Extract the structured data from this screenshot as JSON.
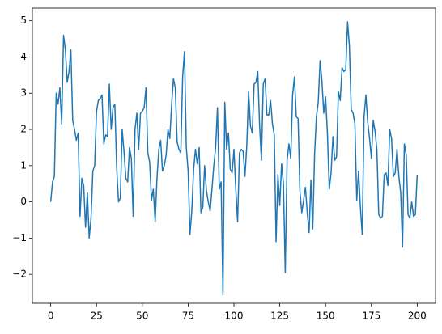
{
  "chart_data": {
    "type": "line",
    "x": [
      0,
      1,
      2,
      3,
      4,
      5,
      6,
      7,
      8,
      9,
      10,
      11,
      12,
      13,
      14,
      15,
      16,
      17,
      18,
      19,
      20,
      21,
      22,
      23,
      24,
      25,
      26,
      27,
      28,
      29,
      30,
      31,
      32,
      33,
      34,
      35,
      36,
      37,
      38,
      39,
      40,
      41,
      42,
      43,
      44,
      45,
      46,
      47,
      48,
      49,
      50,
      51,
      52,
      53,
      54,
      55,
      56,
      57,
      58,
      59,
      60,
      61,
      62,
      63,
      64,
      65,
      66,
      67,
      68,
      69,
      70,
      71,
      72,
      73,
      74,
      75,
      76,
      77,
      78,
      79,
      80,
      81,
      82,
      83,
      84,
      85,
      86,
      87,
      88,
      89,
      90,
      91,
      92,
      93,
      94,
      95,
      96,
      97,
      98,
      99,
      100,
      101,
      102,
      103,
      104,
      105,
      106,
      107,
      108,
      109,
      110,
      111,
      112,
      113,
      114,
      115,
      116,
      117,
      118,
      119,
      120,
      121,
      122,
      123,
      124,
      125,
      126,
      127,
      128,
      129,
      130,
      131,
      132,
      133,
      134,
      135,
      136,
      137,
      138,
      139,
      140,
      141,
      142,
      143,
      144,
      145,
      146,
      147,
      148,
      149,
      150,
      151,
      152,
      153,
      154,
      155,
      156,
      157,
      158,
      159,
      160,
      161,
      162,
      163,
      164,
      165,
      166,
      167,
      168,
      169,
      170,
      171,
      172,
      173,
      174,
      175,
      176,
      177,
      178,
      179,
      180,
      181,
      182,
      183,
      184,
      185,
      186,
      187,
      188,
      189,
      190,
      191,
      192,
      193,
      194,
      195,
      196,
      197,
      198,
      199,
      200
    ],
    "series": [
      {
        "color": "#1f77b4",
        "values": [
          0,
          0.55,
          0.7,
          3.0,
          2.7,
          3.15,
          2.15,
          4.6,
          4.2,
          3.3,
          3.6,
          4.2,
          2.25,
          2.0,
          1.7,
          1.9,
          -0.4,
          0.65,
          0.45,
          -0.7,
          0.25,
          -1.0,
          -0.45,
          0.85,
          1.0,
          2.5,
          2.8,
          2.85,
          2.95,
          1.6,
          1.85,
          1.8,
          3.25,
          2.0,
          2.6,
          2.7,
          0.95,
          0.0,
          0.1,
          2.0,
          1.4,
          0.65,
          0.55,
          1.5,
          1.2,
          -0.4,
          2.0,
          2.45,
          1.45,
          2.45,
          2.5,
          2.6,
          3.15,
          1.35,
          1.1,
          0.05,
          0.35,
          -0.55,
          0.65,
          1.45,
          1.7,
          0.85,
          1.0,
          1.3,
          2.0,
          1.75,
          2.7,
          3.4,
          3.15,
          1.65,
          1.45,
          1.35,
          3.45,
          4.15,
          1.5,
          0.85,
          -0.9,
          -0.25,
          0.9,
          1.45,
          1.05,
          1.5,
          -0.3,
          -0.15,
          1.0,
          0.3,
          0.0,
          -0.25,
          0.35,
          1.0,
          1.5,
          2.6,
          0.35,
          0.55,
          -2.57,
          2.75,
          1.45,
          1.9,
          0.9,
          0.8,
          1.45,
          0.35,
          -0.55,
          1.35,
          1.45,
          1.4,
          0.7,
          1.55,
          3.05,
          2.1,
          1.9,
          3.25,
          3.3,
          3.6,
          2.1,
          1.15,
          3.25,
          3.4,
          2.4,
          2.4,
          2.8,
          2.15,
          1.85,
          -1.1,
          0.75,
          -0.1,
          1.05,
          0.5,
          -1.95,
          1.15,
          1.6,
          1.2,
          2.95,
          3.45,
          2.35,
          2.3,
          0.3,
          -0.3,
          0.05,
          0.4,
          -0.3,
          -0.85,
          0.6,
          -0.75,
          1.3,
          2.35,
          2.75,
          3.9,
          3.35,
          2.45,
          2.9,
          1.9,
          0.35,
          0.8,
          1.8,
          1.15,
          1.25,
          3.05,
          2.8,
          3.7,
          3.6,
          3.65,
          4.97,
          4.3,
          2.55,
          2.45,
          2.15,
          0.05,
          0.85,
          -0.15,
          -0.9,
          2.35,
          2.95,
          2.2,
          1.75,
          1.2,
          2.25,
          1.95,
          1.45,
          -0.35,
          -0.45,
          -0.4,
          0.75,
          0.8,
          0.45,
          2.0,
          1.75,
          0.7,
          0.8,
          1.45,
          0.7,
          0.25,
          -1.25,
          1.6,
          1.3,
          -0.35,
          -0.45,
          0.0,
          -0.4,
          -0.35,
          0.75
        ]
      }
    ],
    "xlim": [
      -10,
      210
    ],
    "xticks": [
      0,
      25,
      50,
      75,
      100,
      125,
      150,
      175,
      200
    ],
    "ylim": [
      -2.8,
      5.35
    ],
    "yticks": [
      {
        "value": -2,
        "label": "−2"
      },
      {
        "value": -1,
        "label": "−1"
      },
      0,
      1,
      2,
      3,
      4,
      5
    ],
    "grid": false
  }
}
